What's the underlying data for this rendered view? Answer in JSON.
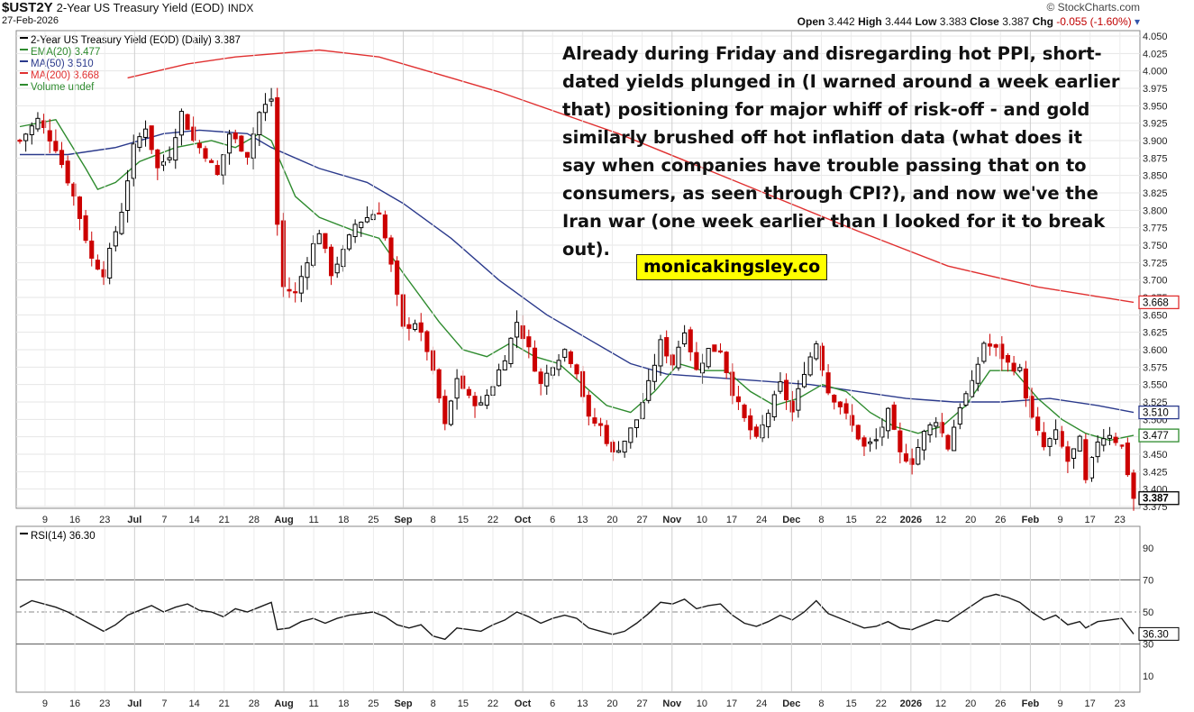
{
  "header": {
    "ticker": "$UST2Y",
    "name": "2-Year US Treasury Yield (EOD)",
    "exchange": "INDX",
    "date": "27-Feb-2026",
    "brand": "© StockCharts.com",
    "open_label": "Open",
    "open": "3.442",
    "high_label": "High",
    "high": "3.444",
    "low_label": "Low",
    "low": "3.383",
    "close_label": "Close",
    "close": "3.387",
    "chg_label": "Chg",
    "chg": "-0.055 (-1.60%)"
  },
  "annotation": "Already during Friday and disregarding hot PPI, short-dated yields plunged in (I warned around a week earlier that) positioning for major whiff of risk-off - and gold similarly brushed off hot inflation data (what does it say when companies have trouble passing that on to consumers, as seen through CPI?), and now we've the Iran war (one week earlier than I looked for it to break out).",
  "watermark": "monicakingsley.co",
  "colors": {
    "up": "#000000",
    "down": "#cc0000",
    "ema20": "#2e8b2e",
    "ma50": "#2b3a8c",
    "ma200": "#e03030",
    "rsi": "#1a1a1a"
  },
  "chart_data": [
    {
      "type": "candlestick",
      "legend": [
        "2-Year US Treasury Yield (EOD) (Daily) 3.387",
        "EMA(20) 3.477",
        "MA(50) 3.510",
        "MA(200) 3.668",
        "Volume undef"
      ],
      "ylim": [
        3.375,
        4.05
      ],
      "yticks": [
        "4.050",
        "4.025",
        "4.000",
        "3.975",
        "3.950",
        "3.925",
        "3.900",
        "3.875",
        "3.850",
        "3.825",
        "3.800",
        "3.775",
        "3.750",
        "3.725",
        "3.700",
        "3.675",
        "3.650",
        "3.625",
        "3.600",
        "3.575",
        "3.550",
        "3.525",
        "3.500",
        "3.475",
        "3.450",
        "3.425",
        "3.400",
        "3.375"
      ],
      "xticks": [
        "9",
        "16",
        "23",
        "Jul",
        "7",
        "14",
        "21",
        "28",
        "Aug",
        "11",
        "18",
        "25",
        "Sep",
        "8",
        "15",
        "22",
        "Oct",
        "6",
        "13",
        "20",
        "27",
        "Nov",
        "10",
        "17",
        "24",
        "Dec",
        "8",
        "15",
        "22",
        "2026",
        "12",
        "20",
        "26",
        "Feb",
        "9",
        "17",
        "23"
      ],
      "bold_xticks": [
        "Jul",
        "Aug",
        "Sep",
        "Oct",
        "Nov",
        "Dec",
        "2026",
        "Feb"
      ],
      "close_points": [
        [
          0,
          3.9
        ],
        [
          3,
          3.93
        ],
        [
          6,
          3.89
        ],
        [
          9,
          3.82
        ],
        [
          12,
          3.73
        ],
        [
          14,
          3.71
        ],
        [
          17,
          3.8
        ],
        [
          19,
          3.89
        ],
        [
          21,
          3.92
        ],
        [
          23,
          3.86
        ],
        [
          25,
          3.88
        ],
        [
          27,
          3.94
        ],
        [
          29,
          3.9
        ],
        [
          31,
          3.88
        ],
        [
          33,
          3.85
        ],
        [
          35,
          3.91
        ],
        [
          38,
          3.88
        ],
        [
          40,
          3.94
        ],
        [
          42,
          3.96
        ],
        [
          43,
          3.78
        ],
        [
          44,
          3.69
        ],
        [
          46,
          3.68
        ],
        [
          48,
          3.73
        ],
        [
          50,
          3.77
        ],
        [
          52,
          3.71
        ],
        [
          54,
          3.74
        ],
        [
          56,
          3.78
        ],
        [
          58,
          3.79
        ],
        [
          60,
          3.8
        ],
        [
          62,
          3.72
        ],
        [
          64,
          3.63
        ],
        [
          66,
          3.64
        ],
        [
          68,
          3.6
        ],
        [
          70,
          3.53
        ],
        [
          71,
          3.49
        ],
        [
          73,
          3.56
        ],
        [
          75,
          3.53
        ],
        [
          77,
          3.52
        ],
        [
          79,
          3.55
        ],
        [
          81,
          3.59
        ],
        [
          83,
          3.64
        ],
        [
          85,
          3.6
        ],
        [
          87,
          3.55
        ],
        [
          89,
          3.58
        ],
        [
          91,
          3.6
        ],
        [
          93,
          3.57
        ],
        [
          95,
          3.5
        ],
        [
          97,
          3.49
        ],
        [
          99,
          3.45
        ],
        [
          101,
          3.47
        ],
        [
          103,
          3.5
        ],
        [
          105,
          3.55
        ],
        [
          107,
          3.61
        ],
        [
          109,
          3.58
        ],
        [
          111,
          3.63
        ],
        [
          113,
          3.57
        ],
        [
          115,
          3.6
        ],
        [
          117,
          3.6
        ],
        [
          119,
          3.54
        ],
        [
          121,
          3.5
        ],
        [
          123,
          3.47
        ],
        [
          125,
          3.51
        ],
        [
          127,
          3.55
        ],
        [
          129,
          3.51
        ],
        [
          131,
          3.57
        ],
        [
          133,
          3.61
        ],
        [
          135,
          3.54
        ],
        [
          137,
          3.52
        ],
        [
          139,
          3.49
        ],
        [
          141,
          3.46
        ],
        [
          143,
          3.47
        ],
        [
          145,
          3.51
        ],
        [
          147,
          3.45
        ],
        [
          149,
          3.44
        ],
        [
          151,
          3.48
        ],
        [
          153,
          3.5
        ],
        [
          155,
          3.46
        ],
        [
          157,
          3.52
        ],
        [
          159,
          3.55
        ],
        [
          161,
          3.61
        ],
        [
          163,
          3.6
        ],
        [
          165,
          3.58
        ],
        [
          167,
          3.57
        ],
        [
          169,
          3.5
        ],
        [
          171,
          3.46
        ],
        [
          173,
          3.48
        ],
        [
          175,
          3.44
        ],
        [
          177,
          3.47
        ],
        [
          178,
          3.41
        ],
        [
          180,
          3.47
        ],
        [
          182,
          3.48
        ],
        [
          184,
          3.46
        ],
        [
          186,
          3.387
        ]
      ],
      "ema20": [
        [
          0,
          3.92
        ],
        [
          6,
          3.93
        ],
        [
          11,
          3.86
        ],
        [
          13,
          3.83
        ],
        [
          16,
          3.84
        ],
        [
          20,
          3.87
        ],
        [
          26,
          3.89
        ],
        [
          32,
          3.9
        ],
        [
          36,
          3.89
        ],
        [
          40,
          3.91
        ],
        [
          42,
          3.9
        ],
        [
          46,
          3.82
        ],
        [
          50,
          3.79
        ],
        [
          56,
          3.77
        ],
        [
          60,
          3.76
        ],
        [
          64,
          3.71
        ],
        [
          70,
          3.64
        ],
        [
          74,
          3.6
        ],
        [
          78,
          3.59
        ],
        [
          82,
          3.61
        ],
        [
          86,
          3.59
        ],
        [
          90,
          3.58
        ],
        [
          94,
          3.55
        ],
        [
          98,
          3.52
        ],
        [
          102,
          3.51
        ],
        [
          106,
          3.54
        ],
        [
          110,
          3.58
        ],
        [
          114,
          3.57
        ],
        [
          118,
          3.57
        ],
        [
          122,
          3.54
        ],
        [
          126,
          3.52
        ],
        [
          130,
          3.53
        ],
        [
          134,
          3.55
        ],
        [
          138,
          3.54
        ],
        [
          142,
          3.51
        ],
        [
          146,
          3.49
        ],
        [
          150,
          3.48
        ],
        [
          154,
          3.49
        ],
        [
          158,
          3.52
        ],
        [
          162,
          3.57
        ],
        [
          166,
          3.57
        ],
        [
          170,
          3.53
        ],
        [
          174,
          3.5
        ],
        [
          178,
          3.48
        ],
        [
          182,
          3.47
        ],
        [
          186,
          3.477
        ]
      ],
      "ma50": [
        [
          0,
          3.88
        ],
        [
          8,
          3.88
        ],
        [
          16,
          3.89
        ],
        [
          24,
          3.91
        ],
        [
          30,
          3.915
        ],
        [
          38,
          3.91
        ],
        [
          42,
          3.89
        ],
        [
          50,
          3.86
        ],
        [
          58,
          3.84
        ],
        [
          64,
          3.81
        ],
        [
          72,
          3.76
        ],
        [
          80,
          3.7
        ],
        [
          88,
          3.65
        ],
        [
          96,
          3.61
        ],
        [
          102,
          3.58
        ],
        [
          108,
          3.565
        ],
        [
          116,
          3.56
        ],
        [
          124,
          3.555
        ],
        [
          132,
          3.55
        ],
        [
          140,
          3.54
        ],
        [
          148,
          3.53
        ],
        [
          156,
          3.525
        ],
        [
          164,
          3.525
        ],
        [
          172,
          3.53
        ],
        [
          180,
          3.52
        ],
        [
          186,
          3.51
        ]
      ],
      "ma200": [
        [
          18,
          3.99
        ],
        [
          28,
          4.01
        ],
        [
          36,
          4.02
        ],
        [
          50,
          4.03
        ],
        [
          60,
          4.02
        ],
        [
          80,
          3.97
        ],
        [
          100,
          3.91
        ],
        [
          120,
          3.84
        ],
        [
          140,
          3.77
        ],
        [
          155,
          3.72
        ],
        [
          170,
          3.69
        ],
        [
          186,
          3.668
        ]
      ],
      "last_labels": {
        "ma200": "3.668",
        "ma50": "3.510",
        "ema20": "3.477",
        "close": "3.387"
      }
    },
    {
      "type": "line",
      "legend": [
        "RSI(14) 36.30"
      ],
      "ylim": [
        0,
        100
      ],
      "yticks": [
        "90",
        "70",
        "50",
        "30",
        "10"
      ],
      "levels": [
        70,
        50,
        30
      ],
      "rsi": [
        [
          0,
          53
        ],
        [
          2,
          57
        ],
        [
          4,
          55
        ],
        [
          6,
          53
        ],
        [
          8,
          50
        ],
        [
          10,
          46
        ],
        [
          12,
          42
        ],
        [
          14,
          38
        ],
        [
          16,
          42
        ],
        [
          18,
          48
        ],
        [
          20,
          51
        ],
        [
          22,
          54
        ],
        [
          24,
          50
        ],
        [
          26,
          53
        ],
        [
          28,
          55
        ],
        [
          30,
          51
        ],
        [
          32,
          50
        ],
        [
          34,
          47
        ],
        [
          36,
          52
        ],
        [
          38,
          50
        ],
        [
          40,
          53
        ],
        [
          42,
          56
        ],
        [
          43,
          39
        ],
        [
          45,
          40
        ],
        [
          47,
          44
        ],
        [
          49,
          46
        ],
        [
          51,
          43
        ],
        [
          53,
          46
        ],
        [
          55,
          48
        ],
        [
          57,
          49
        ],
        [
          59,
          50
        ],
        [
          61,
          47
        ],
        [
          63,
          42
        ],
        [
          65,
          40
        ],
        [
          67,
          42
        ],
        [
          69,
          35
        ],
        [
          71,
          33
        ],
        [
          73,
          40
        ],
        [
          75,
          39
        ],
        [
          77,
          38
        ],
        [
          79,
          42
        ],
        [
          81,
          45
        ],
        [
          83,
          50
        ],
        [
          85,
          47
        ],
        [
          87,
          43
        ],
        [
          89,
          46
        ],
        [
          91,
          48
        ],
        [
          93,
          46
        ],
        [
          95,
          40
        ],
        [
          97,
          38
        ],
        [
          99,
          36
        ],
        [
          101,
          38
        ],
        [
          103,
          43
        ],
        [
          105,
          49
        ],
        [
          107,
          56
        ],
        [
          109,
          55
        ],
        [
          111,
          58
        ],
        [
          113,
          52
        ],
        [
          115,
          54
        ],
        [
          117,
          55
        ],
        [
          119,
          48
        ],
        [
          121,
          43
        ],
        [
          123,
          41
        ],
        [
          125,
          44
        ],
        [
          127,
          48
        ],
        [
          129,
          45
        ],
        [
          131,
          50
        ],
        [
          133,
          57
        ],
        [
          135,
          49
        ],
        [
          137,
          46
        ],
        [
          139,
          43
        ],
        [
          141,
          40
        ],
        [
          143,
          41
        ],
        [
          145,
          44
        ],
        [
          147,
          40
        ],
        [
          149,
          39
        ],
        [
          151,
          42
        ],
        [
          153,
          45
        ],
        [
          155,
          44
        ],
        [
          157,
          49
        ],
        [
          159,
          54
        ],
        [
          161,
          59
        ],
        [
          163,
          61
        ],
        [
          165,
          59
        ],
        [
          167,
          56
        ],
        [
          169,
          50
        ],
        [
          171,
          45
        ],
        [
          173,
          48
        ],
        [
          175,
          42
        ],
        [
          177,
          44
        ],
        [
          178,
          40
        ],
        [
          180,
          44
        ],
        [
          182,
          45
        ],
        [
          184,
          46
        ],
        [
          186,
          36.3
        ]
      ],
      "last_label": "36.30"
    }
  ]
}
